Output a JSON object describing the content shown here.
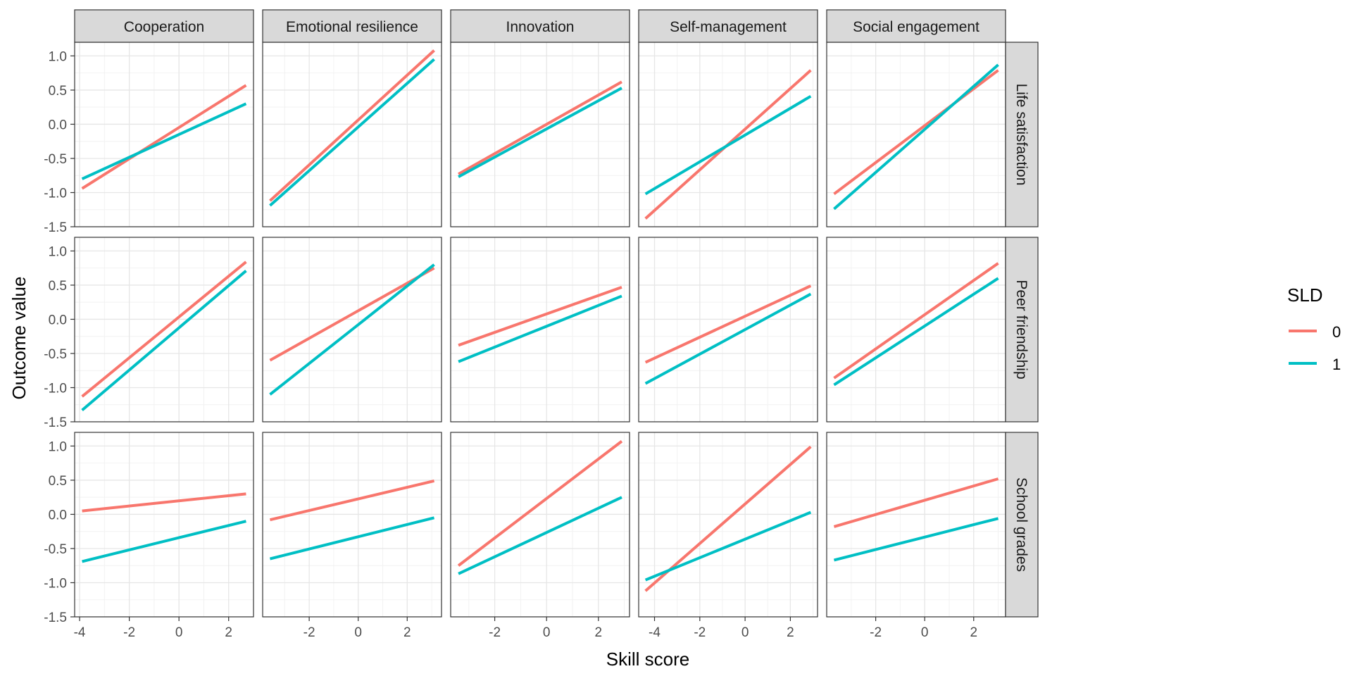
{
  "chart_data": {
    "type": "line",
    "xlabel": "Skill score",
    "ylabel": "Outcome value",
    "ylim": [
      -1.5,
      1.2
    ],
    "y_ticks": [
      1.0,
      0.5,
      0.0,
      -0.5,
      -1.0,
      -1.5
    ],
    "y_tick_labels": [
      "1.0",
      "0.5",
      "0.0",
      "-0.5",
      "-1.0",
      "-1.5"
    ],
    "grid": true,
    "legend": {
      "title": "SLD",
      "position": "right",
      "entries": [
        {
          "label": "0",
          "color": "#F8766D"
        },
        {
          "label": "1",
          "color": "#00BFC4"
        }
      ]
    },
    "columns": [
      {
        "label": "Cooperation",
        "xlim": [
          -4.2,
          3.0
        ],
        "ticks": [
          -4,
          -2,
          0,
          2
        ],
        "tick_labels": [
          "-4",
          "-2",
          "0",
          "2"
        ]
      },
      {
        "label": "Emotional resilience",
        "xlim": [
          -3.9,
          3.4
        ],
        "ticks": [
          -2,
          0,
          2
        ],
        "tick_labels": [
          "-2",
          "0",
          "2"
        ]
      },
      {
        "label": "Innovation",
        "xlim": [
          -3.7,
          3.2
        ],
        "ticks": [
          -2,
          0,
          2
        ],
        "tick_labels": [
          "-2",
          "0",
          "2"
        ]
      },
      {
        "label": "Self-management",
        "xlim": [
          -4.7,
          3.2
        ],
        "ticks": [
          -4,
          -2,
          0,
          2
        ],
        "tick_labels": [
          "-4",
          "-2",
          "0",
          "2"
        ]
      },
      {
        "label": "Social engagement",
        "xlim": [
          -4.0,
          3.3
        ],
        "ticks": [
          -2,
          0,
          2
        ],
        "tick_labels": [
          "-2",
          "0",
          "2"
        ]
      }
    ],
    "rows": [
      {
        "label": "Life satisfaction"
      },
      {
        "label": "Peer friendship"
      },
      {
        "label": "School grades"
      }
    ],
    "panels": [
      [
        {
          "series": [
            {
              "name": "0",
              "x": [
                -3.9,
                2.7
              ],
              "y": [
                -0.94,
                0.57
              ]
            },
            {
              "name": "1",
              "x": [
                -3.9,
                2.7
              ],
              "y": [
                -0.8,
                0.3
              ]
            }
          ]
        },
        {
          "series": [
            {
              "name": "0",
              "x": [
                -3.6,
                3.1
              ],
              "y": [
                -1.12,
                1.08
              ]
            },
            {
              "name": "1",
              "x": [
                -3.6,
                3.1
              ],
              "y": [
                -1.19,
                0.95
              ]
            }
          ]
        },
        {
          "series": [
            {
              "name": "0",
              "x": [
                -3.4,
                2.9
              ],
              "y": [
                -0.73,
                0.62
              ]
            },
            {
              "name": "1",
              "x": [
                -3.4,
                2.9
              ],
              "y": [
                -0.77,
                0.53
              ]
            }
          ]
        },
        {
          "series": [
            {
              "name": "0",
              "x": [
                -4.4,
                2.9
              ],
              "y": [
                -1.38,
                0.79
              ]
            },
            {
              "name": "1",
              "x": [
                -4.4,
                2.9
              ],
              "y": [
                -1.02,
                0.41
              ]
            }
          ]
        },
        {
          "series": [
            {
              "name": "0",
              "x": [
                -3.7,
                3.0
              ],
              "y": [
                -1.02,
                0.79
              ]
            },
            {
              "name": "1",
              "x": [
                -3.7,
                3.0
              ],
              "y": [
                -1.24,
                0.87
              ]
            }
          ]
        }
      ],
      [
        {
          "series": [
            {
              "name": "0",
              "x": [
                -3.9,
                2.7
              ],
              "y": [
                -1.13,
                0.84
              ]
            },
            {
              "name": "1",
              "x": [
                -3.9,
                2.7
              ],
              "y": [
                -1.33,
                0.71
              ]
            }
          ]
        },
        {
          "series": [
            {
              "name": "0",
              "x": [
                -3.6,
                3.1
              ],
              "y": [
                -0.6,
                0.75
              ]
            },
            {
              "name": "1",
              "x": [
                -3.6,
                3.1
              ],
              "y": [
                -1.1,
                0.8
              ]
            }
          ]
        },
        {
          "series": [
            {
              "name": "0",
              "x": [
                -3.4,
                2.9
              ],
              "y": [
                -0.38,
                0.47
              ]
            },
            {
              "name": "1",
              "x": [
                -3.4,
                2.9
              ],
              "y": [
                -0.62,
                0.34
              ]
            }
          ]
        },
        {
          "series": [
            {
              "name": "0",
              "x": [
                -4.4,
                2.9
              ],
              "y": [
                -0.63,
                0.49
              ]
            },
            {
              "name": "1",
              "x": [
                -4.4,
                2.9
              ],
              "y": [
                -0.94,
                0.37
              ]
            }
          ]
        },
        {
          "series": [
            {
              "name": "0",
              "x": [
                -3.7,
                3.0
              ],
              "y": [
                -0.86,
                0.82
              ]
            },
            {
              "name": "1",
              "x": [
                -3.7,
                3.0
              ],
              "y": [
                -0.96,
                0.6
              ]
            }
          ]
        }
      ],
      [
        {
          "series": [
            {
              "name": "0",
              "x": [
                -3.9,
                2.7
              ],
              "y": [
                0.05,
                0.3
              ]
            },
            {
              "name": "1",
              "x": [
                -3.9,
                2.7
              ],
              "y": [
                -0.69,
                -0.1
              ]
            }
          ]
        },
        {
          "series": [
            {
              "name": "0",
              "x": [
                -3.6,
                3.1
              ],
              "y": [
                -0.08,
                0.49
              ]
            },
            {
              "name": "1",
              "x": [
                -3.6,
                3.1
              ],
              "y": [
                -0.65,
                -0.05
              ]
            }
          ]
        },
        {
          "series": [
            {
              "name": "0",
              "x": [
                -3.4,
                2.9
              ],
              "y": [
                -0.75,
                1.07
              ]
            },
            {
              "name": "1",
              "x": [
                -3.4,
                2.9
              ],
              "y": [
                -0.87,
                0.25
              ]
            }
          ]
        },
        {
          "series": [
            {
              "name": "0",
              "x": [
                -4.4,
                2.9
              ],
              "y": [
                -1.12,
                0.99
              ]
            },
            {
              "name": "1",
              "x": [
                -4.4,
                2.9
              ],
              "y": [
                -0.96,
                0.03
              ]
            }
          ]
        },
        {
          "series": [
            {
              "name": "0",
              "x": [
                -3.7,
                3.0
              ],
              "y": [
                -0.18,
                0.52
              ]
            },
            {
              "name": "1",
              "x": [
                -3.7,
                3.0
              ],
              "y": [
                -0.67,
                -0.06
              ]
            }
          ]
        }
      ]
    ]
  }
}
